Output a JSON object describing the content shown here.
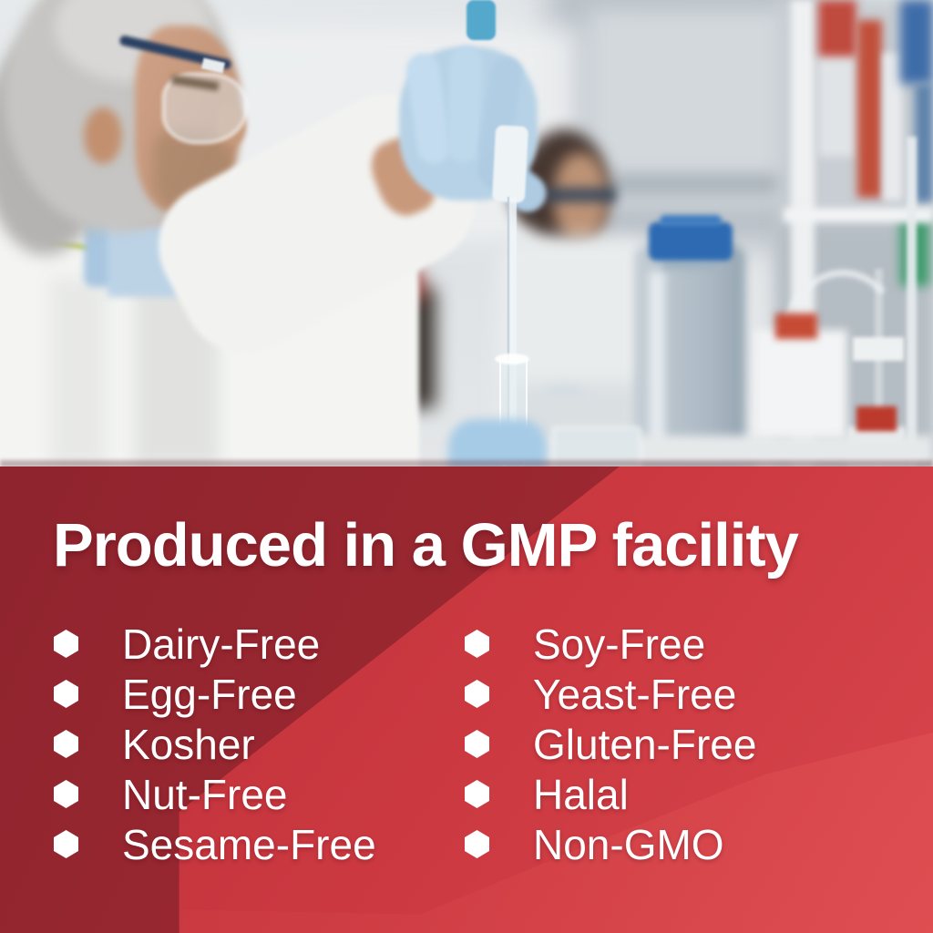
{
  "photo": {
    "description": "Two scientists in a laboratory; a gray-haired man in safety glasses and blue nitrile glove pipettes liquid into a test tube, a blurred colleague and lab glassware shelves behind him"
  },
  "panel": {
    "headline": "Produced in a GMP facility",
    "bullet_icon": "hexagon",
    "columns": [
      {
        "items": [
          "Dairy-Free",
          "Egg-Free",
          "Kosher",
          "Nut-Free",
          "Sesame-Free"
        ]
      },
      {
        "items": [
          "Soy-Free",
          "Yeast-Free",
          "Gluten-Free",
          "Halal",
          "Non-GMO"
        ]
      }
    ],
    "colors": {
      "dark_red": "#92252f",
      "bright_red": "#cc3941",
      "brightest_red": "#d8464c",
      "text": "#ffffff",
      "bullet": "#ffffff"
    }
  }
}
